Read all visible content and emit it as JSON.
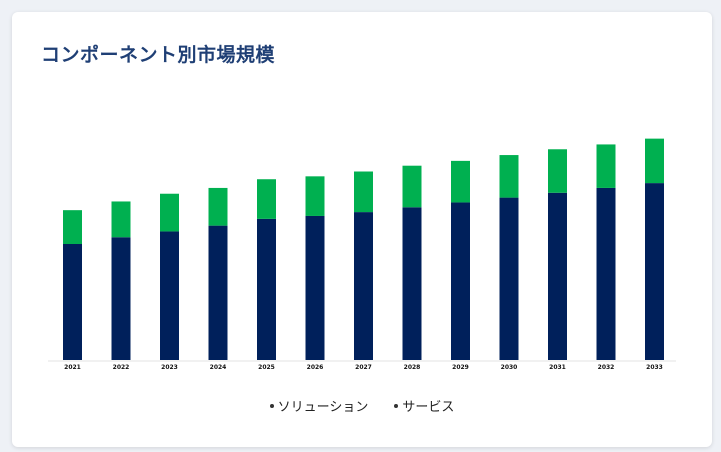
{
  "card": {
    "title": "コンポーネント別市場規模"
  },
  "chart_data": {
    "type": "bar",
    "stacked": true,
    "categories": [
      "2021",
      "2022",
      "2023",
      "2024",
      "2025",
      "2026",
      "2027",
      "2028",
      "2029",
      "2030",
      "2031",
      "2032",
      "2033"
    ],
    "series": [
      {
        "name": "ソリューション",
        "color": "#00205b",
        "values": [
          120,
          127,
          133,
          139,
          146,
          149,
          153,
          158,
          163,
          168,
          173,
          178,
          183
        ]
      },
      {
        "name": "サービス",
        "color": "#00b050",
        "values": [
          35,
          37,
          39,
          39,
          41,
          41,
          42,
          43,
          43,
          44,
          45,
          45,
          46
        ]
      }
    ],
    "ylim": [
      0,
      240
    ],
    "grid": false,
    "legend_position": "bottom-center"
  }
}
